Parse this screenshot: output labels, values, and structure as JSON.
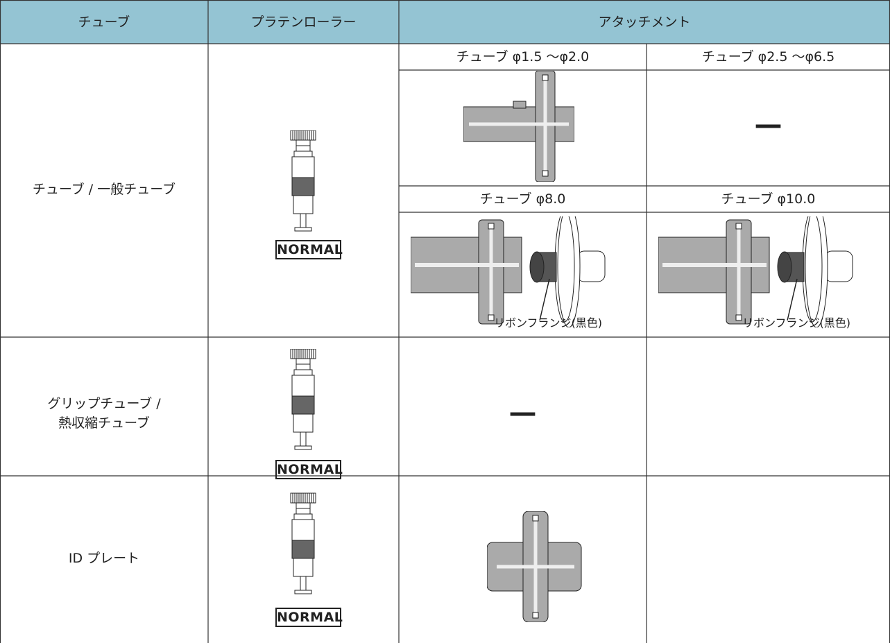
{
  "table": {
    "header": [
      "チューブ",
      "プラテンローラー",
      "アタッチメント"
    ],
    "rows": [
      {
        "tube": "チューブ / 一般チューブ",
        "roller": "NORMAL",
        "attachments": [
          {
            "label": "チューブ φ1.5 ～φ2.0"
          },
          {
            "label": "チューブ φ2.5 ～φ6.5",
            "text": "—"
          },
          {
            "label": "チューブ φ8.0",
            "callout": "リボンフランジ(黒色)"
          },
          {
            "label": "チューブ φ10.0",
            "callout": "リボンフランジ(黒色)"
          }
        ]
      },
      {
        "tube": [
          "グリップチューブ /",
          "熱収縮チューブ"
        ],
        "roller": "NORMAL",
        "attachment": "—"
      },
      {
        "tube": "ID プレート",
        "roller": "NORMAL"
      }
    ]
  }
}
